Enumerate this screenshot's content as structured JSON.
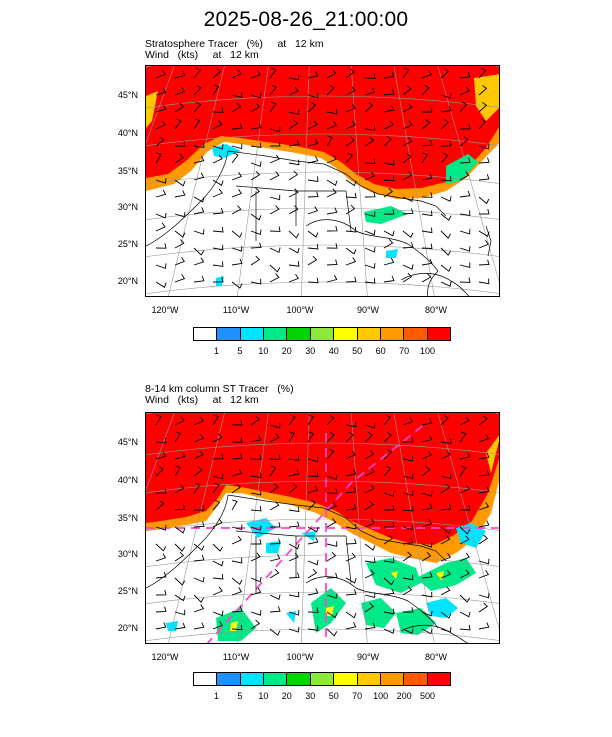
{
  "title": "2025-08-26_21:00:00",
  "panels": [
    {
      "line1": "Stratosphere Tracer   (%)     at   12 km",
      "line2": "Wind   (kts)     at   12 km",
      "lat_labels": [
        "45°N",
        "40°N",
        "35°N",
        "30°N",
        "25°N",
        "20°N"
      ],
      "lon_labels": [
        "120°W",
        "110°W",
        "100°W",
        "90°W",
        "80°W"
      ],
      "colorbar": {
        "labels": [
          "1",
          "5",
          "10",
          "20",
          "30",
          "40",
          "50",
          "60",
          "70",
          "100"
        ],
        "colors": [
          "#ffffff",
          "#1e90ff",
          "#00e5ff",
          "#00e887",
          "#00d400",
          "#8ee83a",
          "#ffff00",
          "#ffc800",
          "#ff9900",
          "#ff5a00",
          "#ff0000"
        ]
      }
    },
    {
      "line1": "8-14 km column ST Tracer   (%)",
      "line2": "Wind   (kts)     at   12 km",
      "lat_labels": [
        "45°N",
        "40°N",
        "35°N",
        "30°N",
        "25°N",
        "20°N"
      ],
      "lon_labels": [
        "120°W",
        "110°W",
        "100°W",
        "90°W",
        "80°W"
      ],
      "colorbar": {
        "labels": [
          "1",
          "5",
          "10",
          "20",
          "30",
          "50",
          "70",
          "100",
          "200",
          "500"
        ],
        "colors": [
          "#ffffff",
          "#1e90ff",
          "#00e5ff",
          "#00e887",
          "#00d400",
          "#8ee83a",
          "#ffff00",
          "#ffc800",
          "#ff9900",
          "#ff5a00",
          "#ff0000"
        ]
      }
    }
  ]
}
